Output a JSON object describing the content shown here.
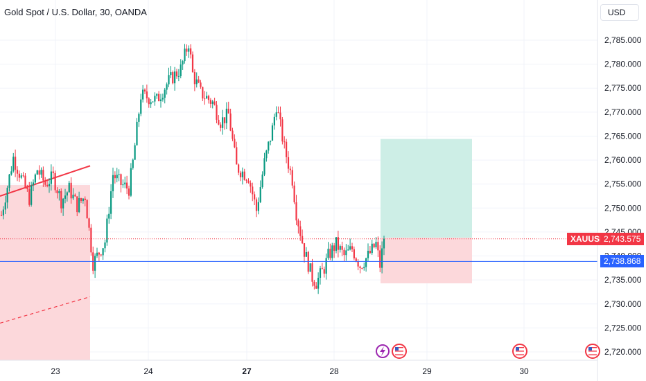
{
  "header": {
    "title": "Gold Spot / U.S. Dollar, 30, OANDA"
  },
  "price_scale": {
    "currency": "USD"
  },
  "colors": {
    "up": "#089981",
    "down": "#f23645",
    "line": "#2962ff",
    "profit_zone": "#cdeee6",
    "loss_zone": "#fcd8db"
  },
  "icons": [
    "lightning-event-icon",
    "us-flag-event-icon"
  ],
  "chart_data": {
    "type": "candlestick",
    "symbol_label": "XAUUSD",
    "x_ticks": [
      {
        "label": "23",
        "bold": false
      },
      {
        "label": "24",
        "bold": false
      },
      {
        "label": "27",
        "bold": true
      },
      {
        "label": "28",
        "bold": false
      },
      {
        "label": "29",
        "bold": false
      },
      {
        "label": "30",
        "bold": false
      }
    ],
    "y_ticks": [
      "2,785.000",
      "2,780.000",
      "2,775.000",
      "2,770.000",
      "2,765.000",
      "2,760.000",
      "2,755.000",
      "2,750.000",
      "2,745.000",
      "2,740.000",
      "2,735.000",
      "2,730.000",
      "2,725.000",
      "2,720.000"
    ],
    "ylim": [
      2718.5,
      2790.5
    ],
    "current_price": 2743.575,
    "current_price_label": "2,743.575",
    "horizontal_line": 2738.868,
    "horizontal_line_label": "2,738.868",
    "position": {
      "entry": 2743.8,
      "target": 2764.4,
      "stop": 2734.3
    },
    "path": [
      [
        0,
        2748.5
      ],
      [
        6,
        2760.5
      ],
      [
        14,
        2752.0
      ],
      [
        18,
        2758.0
      ],
      [
        22,
        2755.0
      ],
      [
        26,
        2756.5
      ],
      [
        30,
        2751.5
      ],
      [
        34,
        2754.0
      ],
      [
        38,
        2750.5
      ],
      [
        42,
        2752.5
      ],
      [
        46,
        2738.5
      ],
      [
        52,
        2743.0
      ],
      [
        56,
        2757.0
      ],
      [
        60,
        2755.0
      ],
      [
        64,
        2754.0
      ],
      [
        66,
        2759.5
      ],
      [
        70,
        2773.5
      ],
      [
        78,
        2772.5
      ],
      [
        84,
        2776.5
      ],
      [
        90,
        2779.0
      ],
      [
        94,
        2784.5
      ],
      [
        96,
        2778.0
      ],
      [
        100,
        2774.0
      ],
      [
        106,
        2772.0
      ],
      [
        110,
        2768.0
      ],
      [
        114,
        2769.5
      ],
      [
        118,
        2758.5
      ],
      [
        124,
        2756.5
      ],
      [
        128,
        2749.5
      ],
      [
        132,
        2759.5
      ],
      [
        136,
        2766.5
      ],
      [
        138,
        2771.5
      ],
      [
        142,
        2762.5
      ],
      [
        146,
        2756.0
      ],
      [
        148,
        2749.0
      ],
      [
        152,
        2741.0
      ],
      [
        156,
        2735.5
      ],
      [
        158,
        2734.5
      ],
      [
        162,
        2737.5
      ],
      [
        164,
        2740.0
      ],
      [
        168,
        2742.5
      ],
      [
        172,
        2740.0
      ],
      [
        176,
        2741.5
      ],
      [
        180,
        2738.0
      ],
      [
        184,
        2740.0
      ],
      [
        188,
        2742.5
      ],
      [
        190,
        2738.0
      ],
      [
        192,
        2743.575
      ]
    ]
  }
}
